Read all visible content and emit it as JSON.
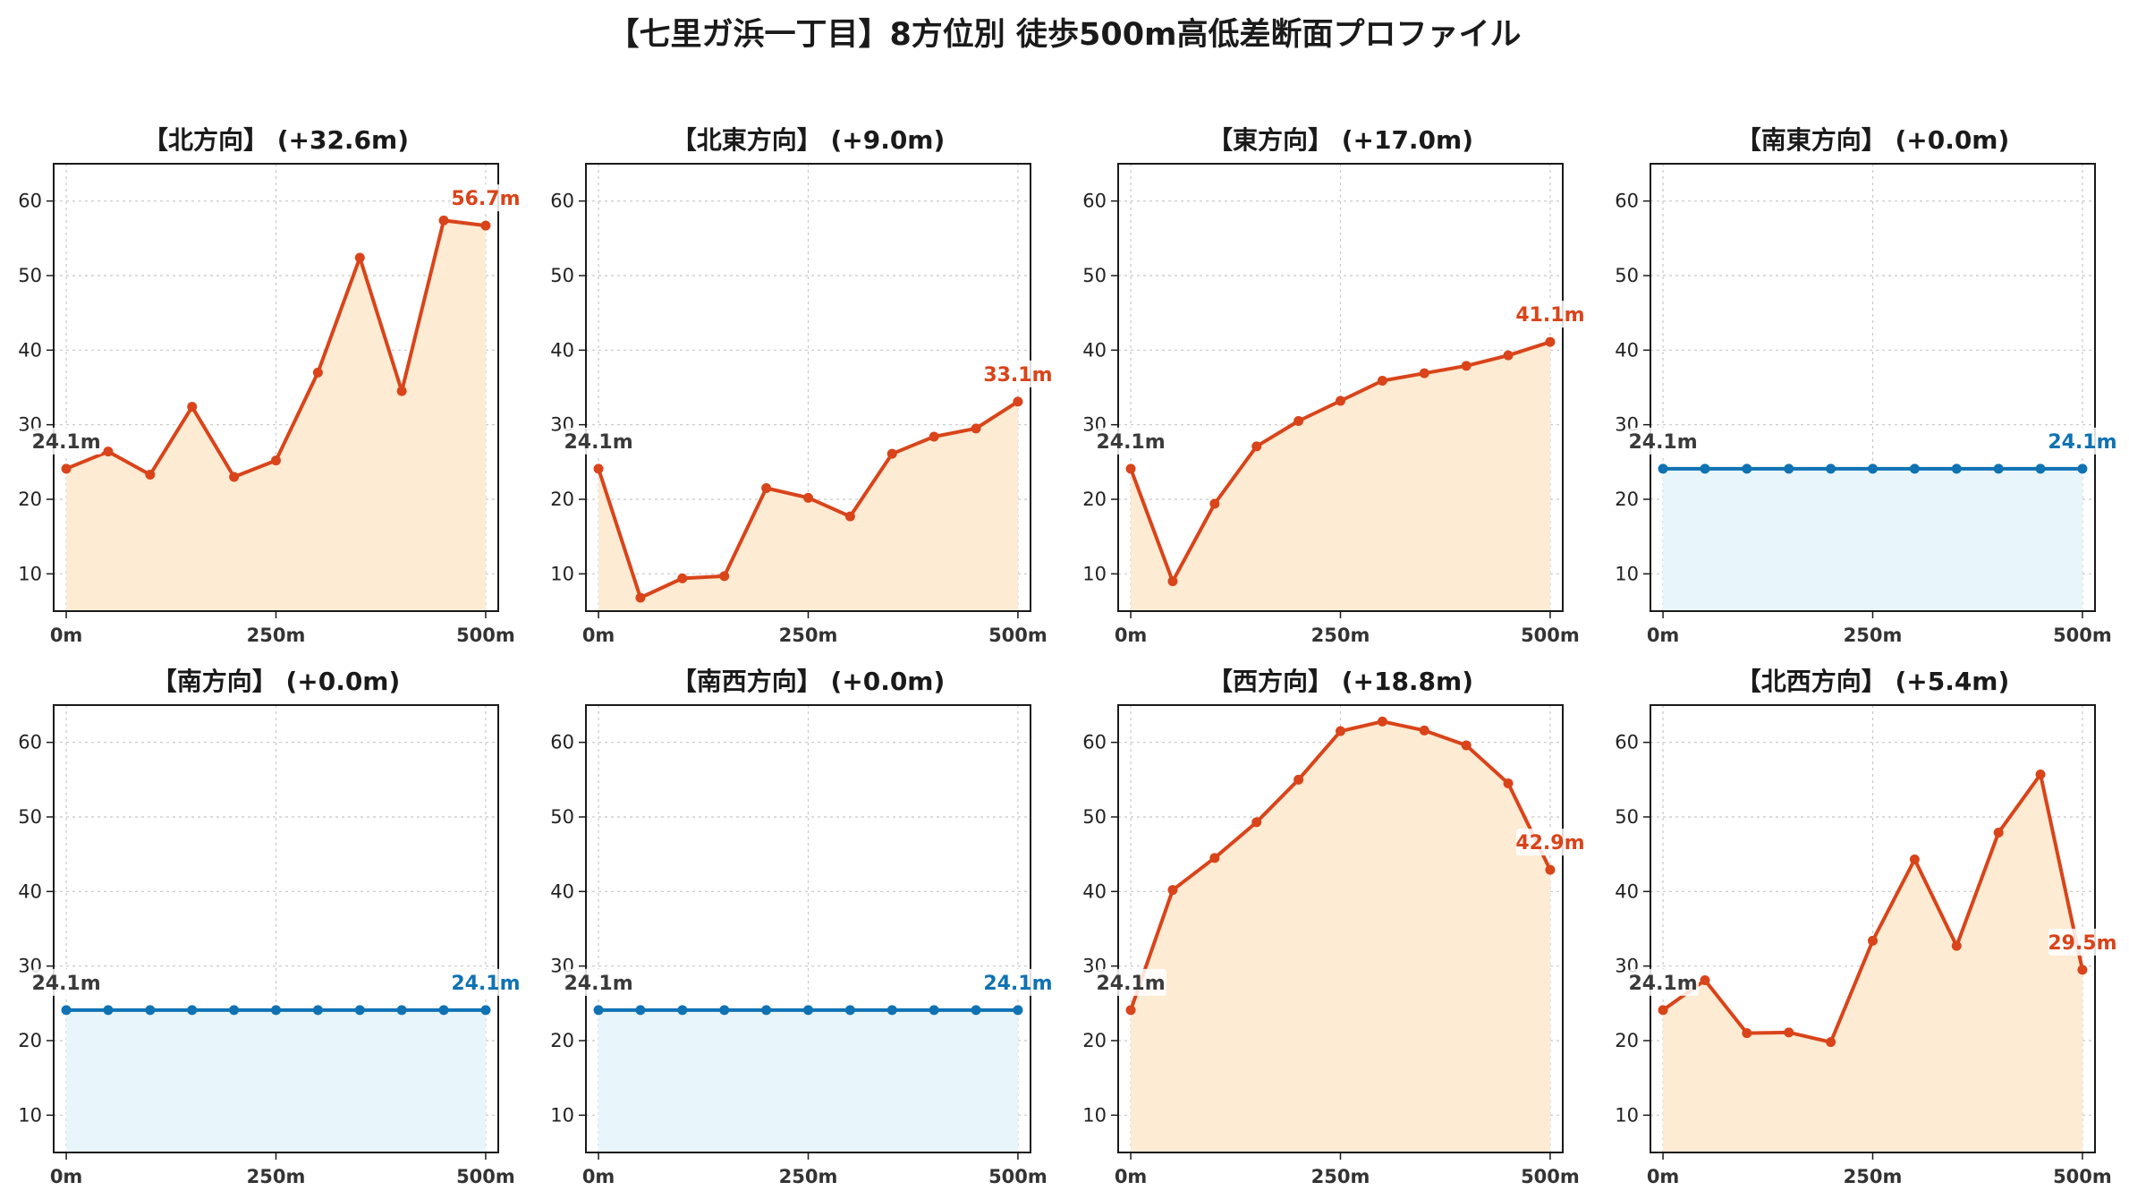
{
  "title": "【七里ガ浜一丁目】8方位別 徒歩500m高低差断面プロファイル",
  "colors": {
    "up_line": "#d9441a",
    "up_fill": "#fdebd3",
    "flat_line": "#0f72b3",
    "flat_fill": "#e8f5fb",
    "start_label": "#3a3a3a",
    "grid": "#c8c8c8",
    "axis": "#1a1a1a"
  },
  "chart_data": [
    {
      "type": "area",
      "title": "【北方向】 (+32.6m)",
      "x": [
        0,
        50,
        100,
        150,
        200,
        250,
        300,
        350,
        400,
        450,
        500
      ],
      "values": [
        24.1,
        26.4,
        23.3,
        32.4,
        23.0,
        25.2,
        37.0,
        52.4,
        34.5,
        57.4,
        56.7
      ],
      "xticks": [
        0,
        250,
        500
      ],
      "xtick_labels": [
        "0m",
        "250m",
        "500m"
      ],
      "yticks": [
        10,
        20,
        30,
        40,
        50,
        60
      ],
      "xlim": [
        -15,
        515
      ],
      "ylim": [
        5,
        65
      ],
      "start_label": "24.1m",
      "end_label": "56.7m",
      "trend": "up",
      "grid": true
    },
    {
      "type": "area",
      "title": "【北東方向】 (+9.0m)",
      "x": [
        0,
        50,
        100,
        150,
        200,
        250,
        300,
        350,
        400,
        450,
        500
      ],
      "values": [
        24.1,
        6.8,
        9.4,
        9.7,
        21.5,
        20.2,
        17.7,
        26.1,
        28.4,
        29.5,
        33.1
      ],
      "xticks": [
        0,
        250,
        500
      ],
      "xtick_labels": [
        "0m",
        "250m",
        "500m"
      ],
      "yticks": [
        10,
        20,
        30,
        40,
        50,
        60
      ],
      "xlim": [
        -15,
        515
      ],
      "ylim": [
        5,
        65
      ],
      "start_label": "24.1m",
      "end_label": "33.1m",
      "trend": "up",
      "grid": true
    },
    {
      "type": "area",
      "title": "【東方向】 (+17.0m)",
      "x": [
        0,
        50,
        100,
        150,
        200,
        250,
        300,
        350,
        400,
        450,
        500
      ],
      "values": [
        24.1,
        9.0,
        19.4,
        27.1,
        30.5,
        33.2,
        35.9,
        36.9,
        37.9,
        39.3,
        41.1
      ],
      "xticks": [
        0,
        250,
        500
      ],
      "xtick_labels": [
        "0m",
        "250m",
        "500m"
      ],
      "yticks": [
        10,
        20,
        30,
        40,
        50,
        60
      ],
      "xlim": [
        -15,
        515
      ],
      "ylim": [
        5,
        65
      ],
      "start_label": "24.1m",
      "end_label": "41.1m",
      "trend": "up",
      "grid": true
    },
    {
      "type": "area",
      "title": "【南東方向】 (+0.0m)",
      "x": [
        0,
        50,
        100,
        150,
        200,
        250,
        300,
        350,
        400,
        450,
        500
      ],
      "values": [
        24.1,
        24.1,
        24.1,
        24.1,
        24.1,
        24.1,
        24.1,
        24.1,
        24.1,
        24.1,
        24.1
      ],
      "xticks": [
        0,
        250,
        500
      ],
      "xtick_labels": [
        "0m",
        "250m",
        "500m"
      ],
      "yticks": [
        10,
        20,
        30,
        40,
        50,
        60
      ],
      "xlim": [
        -15,
        515
      ],
      "ylim": [
        5,
        65
      ],
      "start_label": "24.1m",
      "end_label": "24.1m",
      "trend": "flat",
      "grid": true
    },
    {
      "type": "area",
      "title": "【南方向】 (+0.0m)",
      "x": [
        0,
        50,
        100,
        150,
        200,
        250,
        300,
        350,
        400,
        450,
        500
      ],
      "values": [
        24.1,
        24.1,
        24.1,
        24.1,
        24.1,
        24.1,
        24.1,
        24.1,
        24.1,
        24.1,
        24.1
      ],
      "xticks": [
        0,
        250,
        500
      ],
      "xtick_labels": [
        "0m",
        "250m",
        "500m"
      ],
      "yticks": [
        10,
        20,
        30,
        40,
        50,
        60
      ],
      "xlim": [
        -15,
        515
      ],
      "ylim": [
        5,
        65
      ],
      "start_label": "24.1m",
      "end_label": "24.1m",
      "trend": "flat",
      "grid": true
    },
    {
      "type": "area",
      "title": "【南西方向】 (+0.0m)",
      "x": [
        0,
        50,
        100,
        150,
        200,
        250,
        300,
        350,
        400,
        450,
        500
      ],
      "values": [
        24.1,
        24.1,
        24.1,
        24.1,
        24.1,
        24.1,
        24.1,
        24.1,
        24.1,
        24.1,
        24.1
      ],
      "xticks": [
        0,
        250,
        500
      ],
      "xtick_labels": [
        "0m",
        "250m",
        "500m"
      ],
      "yticks": [
        10,
        20,
        30,
        40,
        50,
        60
      ],
      "xlim": [
        -15,
        515
      ],
      "ylim": [
        5,
        65
      ],
      "start_label": "24.1m",
      "end_label": "24.1m",
      "trend": "flat",
      "grid": true
    },
    {
      "type": "area",
      "title": "【西方向】 (+18.8m)",
      "x": [
        0,
        50,
        100,
        150,
        200,
        250,
        300,
        350,
        400,
        450,
        500
      ],
      "values": [
        24.1,
        40.2,
        44.5,
        49.3,
        55.0,
        61.5,
        62.8,
        61.6,
        59.6,
        54.5,
        42.9
      ],
      "xticks": [
        0,
        250,
        500
      ],
      "xtick_labels": [
        "0m",
        "250m",
        "500m"
      ],
      "yticks": [
        10,
        20,
        30,
        40,
        50,
        60
      ],
      "xlim": [
        -15,
        515
      ],
      "ylim": [
        5,
        65
      ],
      "start_label": "24.1m",
      "end_label": "42.9m",
      "trend": "up",
      "grid": true
    },
    {
      "type": "area",
      "title": "【北西方向】 (+5.4m)",
      "x": [
        0,
        50,
        100,
        150,
        200,
        250,
        300,
        350,
        400,
        450,
        500
      ],
      "values": [
        24.1,
        28.1,
        21.0,
        21.1,
        19.8,
        33.4,
        44.3,
        32.7,
        47.9,
        55.7,
        29.5
      ],
      "xticks": [
        0,
        250,
        500
      ],
      "xtick_labels": [
        "0m",
        "250m",
        "500m"
      ],
      "yticks": [
        10,
        20,
        30,
        40,
        50,
        60
      ],
      "xlim": [
        -15,
        515
      ],
      "ylim": [
        5,
        65
      ],
      "start_label": "24.1m",
      "end_label": "29.5m",
      "trend": "up",
      "grid": true
    }
  ]
}
